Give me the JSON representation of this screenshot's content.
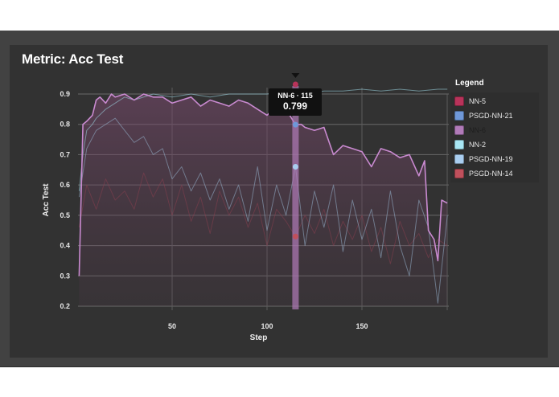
{
  "page": {
    "title": "Metric: Acc Test"
  },
  "legend": {
    "title": "Legend",
    "items": [
      {
        "label": "NN-5",
        "color": "#b8335a",
        "muted": false
      },
      {
        "label": "PSGD-NN-21",
        "color": "#6f98d8",
        "muted": false
      },
      {
        "label": "NN-6",
        "color": "#b07ab8",
        "muted": true
      },
      {
        "label": "NN-2",
        "color": "#a8e6f3",
        "muted": false
      },
      {
        "label": "PSGD-NN-19",
        "color": "#a9cdef",
        "muted": false
      },
      {
        "label": "PSGD-NN-14",
        "color": "#c0505c",
        "muted": false
      }
    ]
  },
  "tooltip": {
    "header": "NN-6 · 115",
    "value": "0.799"
  },
  "chart_data": {
    "type": "line",
    "title": "Metric: Acc Test",
    "xlabel": "Step",
    "ylabel": "Acc Test",
    "xlim": [
      1,
      195
    ],
    "ylim": [
      0.2,
      0.9
    ],
    "xticks": [
      50,
      100,
      150
    ],
    "yticks": [
      0.2,
      0.3,
      0.4,
      0.5,
      0.6,
      0.7,
      0.8,
      0.9
    ],
    "grid": true,
    "legend_position": "right",
    "hover": {
      "series": "NN-6",
      "step": 115,
      "value": 0.799
    },
    "series": [
      {
        "name": "NN-6",
        "color": "#c98ad0",
        "x": [
          1,
          3,
          5,
          8,
          10,
          12,
          15,
          18,
          20,
          25,
          30,
          35,
          40,
          45,
          50,
          55,
          60,
          65,
          70,
          75,
          80,
          85,
          90,
          95,
          100,
          105,
          110,
          115,
          118,
          120,
          125,
          130,
          135,
          140,
          145,
          150,
          155,
          160,
          165,
          170,
          175,
          180,
          183,
          185,
          188,
          190,
          192,
          195
        ],
        "y": [
          0.3,
          0.8,
          0.81,
          0.83,
          0.88,
          0.89,
          0.87,
          0.9,
          0.89,
          0.9,
          0.88,
          0.9,
          0.89,
          0.89,
          0.87,
          0.88,
          0.89,
          0.86,
          0.88,
          0.87,
          0.86,
          0.88,
          0.87,
          0.85,
          0.83,
          0.86,
          0.85,
          0.799,
          0.8,
          0.79,
          0.78,
          0.79,
          0.7,
          0.73,
          0.72,
          0.71,
          0.66,
          0.72,
          0.71,
          0.69,
          0.7,
          0.63,
          0.68,
          0.45,
          0.42,
          0.35,
          0.55,
          0.54
        ]
      },
      {
        "name": "NN-2",
        "color": "#9fd8e6",
        "x": [
          1,
          3,
          5,
          8,
          10,
          15,
          20,
          25,
          30,
          40,
          50,
          60,
          70,
          80,
          90,
          100,
          110,
          115,
          120,
          130,
          140,
          150,
          160,
          170,
          180,
          190,
          195
        ],
        "y": [
          0.58,
          0.7,
          0.78,
          0.8,
          0.82,
          0.85,
          0.87,
          0.89,
          0.88,
          0.9,
          0.89,
          0.9,
          0.89,
          0.9,
          0.9,
          0.9,
          0.91,
          0.91,
          0.9,
          0.91,
          0.91,
          0.92,
          0.91,
          0.92,
          0.91,
          0.93,
          0.92
        ]
      },
      {
        "name": "PSGD-NN-19",
        "color": "#8fa9c2",
        "x": [
          1,
          5,
          10,
          15,
          20,
          25,
          30,
          35,
          40,
          45,
          50,
          55,
          60,
          65,
          70,
          75,
          80,
          85,
          90,
          95,
          100,
          105,
          110,
          115,
          120,
          125,
          130,
          135,
          140,
          145,
          150,
          155,
          160,
          165,
          170,
          175,
          180,
          185,
          190,
          195
        ],
        "y": [
          0.56,
          0.72,
          0.78,
          0.8,
          0.82,
          0.78,
          0.74,
          0.76,
          0.7,
          0.72,
          0.62,
          0.66,
          0.58,
          0.64,
          0.55,
          0.62,
          0.52,
          0.6,
          0.48,
          0.66,
          0.45,
          0.6,
          0.5,
          0.66,
          0.4,
          0.58,
          0.46,
          0.6,
          0.38,
          0.55,
          0.42,
          0.52,
          0.36,
          0.58,
          0.4,
          0.3,
          0.55,
          0.46,
          0.21,
          0.5
        ]
      },
      {
        "name": "PSGD-NN-14",
        "color": "#8c4050",
        "x": [
          1,
          5,
          10,
          15,
          20,
          25,
          30,
          35,
          40,
          45,
          50,
          55,
          60,
          65,
          70,
          75,
          80,
          85,
          90,
          95,
          100,
          105,
          110,
          115,
          120,
          125,
          130,
          135,
          140,
          145,
          150,
          155,
          160,
          165,
          170,
          175,
          180,
          185,
          190,
          195
        ],
        "y": [
          0.46,
          0.6,
          0.52,
          0.62,
          0.55,
          0.58,
          0.52,
          0.64,
          0.56,
          0.62,
          0.5,
          0.6,
          0.48,
          0.56,
          0.44,
          0.58,
          0.5,
          0.56,
          0.46,
          0.54,
          0.4,
          0.52,
          0.48,
          0.43,
          0.5,
          0.44,
          0.52,
          0.4,
          0.48,
          0.42,
          0.5,
          0.38,
          0.46,
          0.34,
          0.48,
          0.4,
          0.44,
          0.36,
          0.42,
          0.4
        ]
      },
      {
        "name": "PSGD-NN-21",
        "color": "#6f98d8",
        "x": [
          115
        ],
        "y": [
          0.66
        ]
      },
      {
        "name": "NN-5",
        "color": "#b8335a",
        "x": [
          115
        ],
        "y": [
          0.43
        ]
      }
    ]
  }
}
